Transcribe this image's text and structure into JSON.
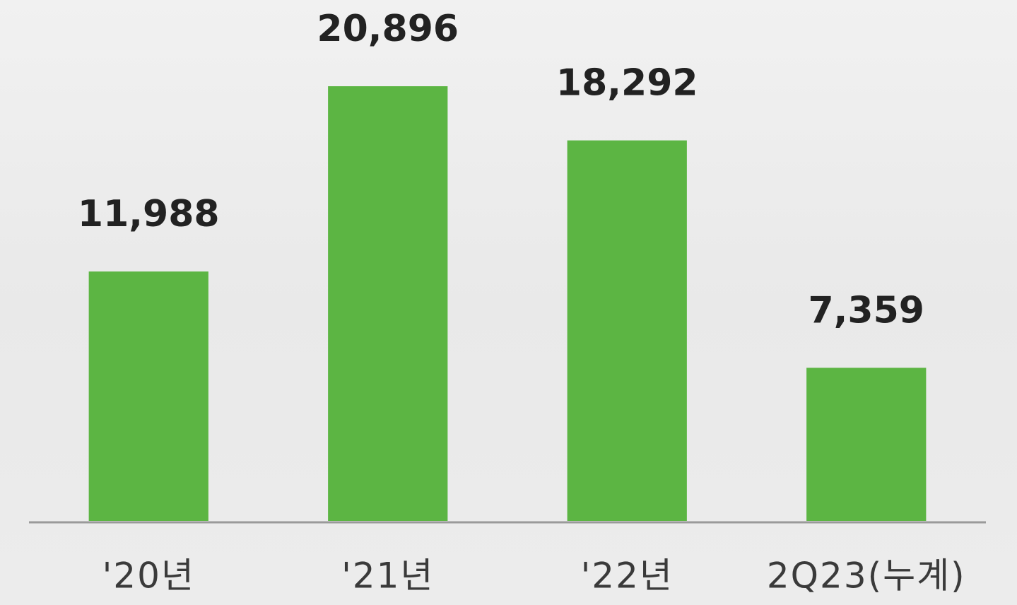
{
  "chart_data": {
    "type": "bar",
    "categories": [
      "'20년",
      "'21년",
      "'22년",
      "2Q23(누계)"
    ],
    "values": [
      11988,
      20896,
      18292,
      7359
    ],
    "value_labels": [
      "11,988",
      "20,896",
      "18,292",
      "7,359"
    ],
    "color": "#5cb543"
  }
}
